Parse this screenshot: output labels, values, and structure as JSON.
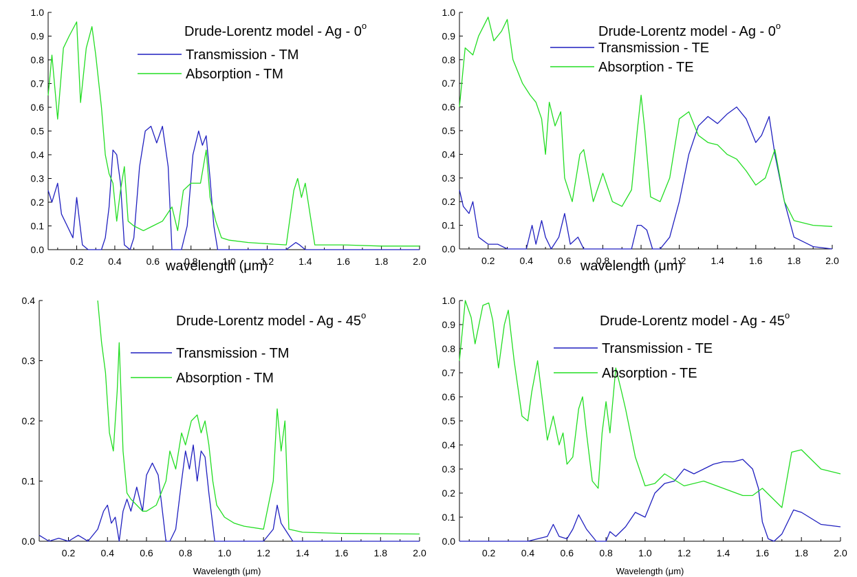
{
  "chart_data": [
    {
      "type": "line",
      "title": "Drude-Lorentz model - Ag - 0",
      "title_superscript": "o",
      "xlabel": "wavelength (μm)",
      "ylabel": "",
      "xlim": [
        0.05,
        2.0
      ],
      "ylim": [
        0.0,
        1.0
      ],
      "xticks": [
        0.2,
        0.4,
        0.6,
        0.8,
        1.0,
        1.2,
        1.4,
        1.6,
        1.8,
        2.0
      ],
      "xticklabels": [
        "0.2",
        "0.4",
        "0.6",
        "0.8",
        "1.0",
        "1.2",
        "1.4",
        "1.6",
        "1.8",
        "2.0"
      ],
      "yticks": [
        0.0,
        0.1,
        0.2,
        0.3,
        0.4,
        0.5,
        0.6,
        0.7,
        0.8,
        0.9,
        1.0
      ],
      "yticklabels": [
        "0.0",
        "0.1",
        "0.2",
        "0.3",
        "0.4",
        "0.5",
        "0.6",
        "0.7",
        "0.8",
        "0.9",
        "1.0"
      ],
      "legend_position": "top-right",
      "series": [
        {
          "name": "Transmission - TM",
          "color": "#1f1fbf",
          "x": [
            0.05,
            0.07,
            0.1,
            0.12,
            0.15,
            0.18,
            0.2,
            0.23,
            0.26,
            0.3,
            0.33,
            0.35,
            0.37,
            0.39,
            0.41,
            0.43,
            0.45,
            0.48,
            0.5,
            0.53,
            0.56,
            0.59,
            0.62,
            0.65,
            0.68,
            0.7,
            0.72,
            0.75,
            0.78,
            0.81,
            0.84,
            0.86,
            0.88,
            0.9,
            0.92,
            0.94,
            0.96,
            1.0,
            1.3,
            1.35,
            1.37,
            1.4,
            2.0
          ],
          "values": [
            0.25,
            0.2,
            0.28,
            0.15,
            0.1,
            0.05,
            0.22,
            0.02,
            0.0,
            0.0,
            0.0,
            0.05,
            0.18,
            0.42,
            0.4,
            0.28,
            0.02,
            0.0,
            0.05,
            0.35,
            0.5,
            0.52,
            0.45,
            0.52,
            0.35,
            0.0,
            0.0,
            0.0,
            0.1,
            0.4,
            0.5,
            0.44,
            0.48,
            0.3,
            0.1,
            0.0,
            0.0,
            0.0,
            0.0,
            0.03,
            0.02,
            0.0,
            0.0
          ]
        },
        {
          "name": "Absorption - TM",
          "color": "#22dd22",
          "x": [
            0.05,
            0.07,
            0.1,
            0.13,
            0.16,
            0.2,
            0.22,
            0.25,
            0.28,
            0.3,
            0.33,
            0.35,
            0.37,
            0.39,
            0.41,
            0.43,
            0.45,
            0.47,
            0.5,
            0.55,
            0.6,
            0.65,
            0.7,
            0.73,
            0.76,
            0.8,
            0.85,
            0.88,
            0.9,
            0.93,
            0.96,
            1.0,
            1.1,
            1.2,
            1.3,
            1.34,
            1.36,
            1.38,
            1.4,
            1.45,
            1.6,
            1.8,
            2.0
          ],
          "values": [
            0.65,
            0.82,
            0.55,
            0.85,
            0.9,
            0.96,
            0.62,
            0.85,
            0.94,
            0.82,
            0.6,
            0.4,
            0.32,
            0.28,
            0.12,
            0.25,
            0.35,
            0.12,
            0.1,
            0.08,
            0.1,
            0.12,
            0.18,
            0.08,
            0.25,
            0.28,
            0.28,
            0.42,
            0.22,
            0.12,
            0.05,
            0.04,
            0.03,
            0.025,
            0.02,
            0.25,
            0.3,
            0.22,
            0.28,
            0.02,
            0.02,
            0.015,
            0.015
          ]
        }
      ]
    },
    {
      "type": "line",
      "title": "Drude-Lorentz model - Ag - 0",
      "title_superscript": "o",
      "xlabel": "wavelength (μm)",
      "ylabel": "",
      "xlim": [
        0.05,
        2.0
      ],
      "ylim": [
        0.0,
        1.0
      ],
      "xticks": [
        0.2,
        0.4,
        0.6,
        0.8,
        1.0,
        1.2,
        1.4,
        1.6,
        1.8,
        2.0
      ],
      "xticklabels": [
        "0.2",
        "0.4",
        "0.6",
        "0.8",
        "1.0",
        "1.2",
        "1.4",
        "1.6",
        "1.8",
        "2.0"
      ],
      "yticks": [
        0.0,
        0.1,
        0.2,
        0.3,
        0.4,
        0.5,
        0.6,
        0.7,
        0.8,
        0.9,
        1.0
      ],
      "yticklabels": [
        "0.0",
        "0.1",
        "0.2",
        "0.3",
        "0.4",
        "0.5",
        "0.6",
        "0.7",
        "0.8",
        "0.9",
        "1.0"
      ],
      "legend_position": "top-right",
      "series": [
        {
          "name": "Transmission - TE",
          "color": "#1f1fbf",
          "x": [
            0.05,
            0.07,
            0.1,
            0.12,
            0.15,
            0.2,
            0.25,
            0.3,
            0.35,
            0.4,
            0.43,
            0.45,
            0.48,
            0.5,
            0.53,
            0.57,
            0.6,
            0.63,
            0.67,
            0.7,
            0.8,
            0.95,
            0.98,
            1.0,
            1.03,
            1.06,
            1.1,
            1.15,
            1.2,
            1.25,
            1.3,
            1.35,
            1.4,
            1.45,
            1.5,
            1.55,
            1.6,
            1.63,
            1.67,
            1.7,
            1.75,
            1.8,
            1.9,
            2.0
          ],
          "values": [
            0.25,
            0.18,
            0.15,
            0.2,
            0.05,
            0.02,
            0.02,
            0.0,
            0.0,
            0.0,
            0.1,
            0.02,
            0.12,
            0.05,
            0.0,
            0.05,
            0.15,
            0.02,
            0.05,
            0.0,
            0.0,
            0.0,
            0.1,
            0.1,
            0.08,
            0.0,
            0.0,
            0.05,
            0.2,
            0.4,
            0.52,
            0.56,
            0.53,
            0.57,
            0.6,
            0.55,
            0.45,
            0.48,
            0.56,
            0.4,
            0.2,
            0.05,
            0.01,
            0.0
          ]
        },
        {
          "name": "Absorption - TE",
          "color": "#22dd22",
          "x": [
            0.05,
            0.08,
            0.12,
            0.15,
            0.2,
            0.23,
            0.27,
            0.3,
            0.33,
            0.38,
            0.42,
            0.45,
            0.48,
            0.5,
            0.52,
            0.55,
            0.58,
            0.6,
            0.64,
            0.68,
            0.7,
            0.75,
            0.8,
            0.85,
            0.9,
            0.95,
            0.98,
            1.0,
            1.02,
            1.05,
            1.1,
            1.15,
            1.2,
            1.25,
            1.3,
            1.35,
            1.4,
            1.45,
            1.5,
            1.55,
            1.6,
            1.65,
            1.7,
            1.75,
            1.8,
            1.9,
            2.0
          ],
          "values": [
            0.6,
            0.85,
            0.82,
            0.9,
            0.98,
            0.88,
            0.92,
            0.97,
            0.8,
            0.7,
            0.65,
            0.62,
            0.55,
            0.4,
            0.62,
            0.52,
            0.58,
            0.3,
            0.2,
            0.4,
            0.42,
            0.2,
            0.32,
            0.2,
            0.18,
            0.25,
            0.5,
            0.65,
            0.5,
            0.22,
            0.2,
            0.3,
            0.55,
            0.58,
            0.48,
            0.45,
            0.44,
            0.4,
            0.38,
            0.33,
            0.27,
            0.3,
            0.42,
            0.2,
            0.12,
            0.1,
            0.095
          ]
        }
      ]
    },
    {
      "type": "line",
      "title": "Drude-Lorentz model - Ag - 45",
      "title_superscript": "o",
      "xlabel": "Wavelength (μm)",
      "ylabel": "",
      "xlim": [
        0.05,
        2.0
      ],
      "ylim": [
        0.0,
        0.4
      ],
      "xticks": [
        0.2,
        0.4,
        0.6,
        0.8,
        1.0,
        1.2,
        1.4,
        1.6,
        1.8,
        2.0
      ],
      "xticklabels": [
        "0.2",
        "0.4",
        "0.6",
        "0.8",
        "1.0",
        "1.2",
        "1.4",
        "1.6",
        "1.8",
        "2.0"
      ],
      "yticks": [
        0.0,
        0.1,
        0.2,
        0.3,
        0.4
      ],
      "yticklabels": [
        "0.0",
        "0.1",
        "0.2",
        "0.3",
        "0.4"
      ],
      "legend_position": "top-right",
      "series": [
        {
          "name": "Transmission - TM",
          "color": "#1f1fbf",
          "x": [
            0.05,
            0.1,
            0.15,
            0.2,
            0.25,
            0.3,
            0.35,
            0.38,
            0.4,
            0.42,
            0.44,
            0.46,
            0.48,
            0.5,
            0.52,
            0.55,
            0.58,
            0.6,
            0.63,
            0.66,
            0.7,
            0.72,
            0.75,
            0.78,
            0.8,
            0.82,
            0.84,
            0.86,
            0.88,
            0.9,
            0.92,
            0.95,
            1.0,
            1.2,
            1.25,
            1.27,
            1.29,
            1.31,
            1.35,
            2.0
          ],
          "values": [
            0.01,
            0.0,
            0.005,
            0.0,
            0.01,
            0.0,
            0.02,
            0.05,
            0.06,
            0.03,
            0.04,
            0.0,
            0.05,
            0.07,
            0.05,
            0.09,
            0.05,
            0.11,
            0.13,
            0.11,
            0.0,
            0.0,
            0.02,
            0.1,
            0.15,
            0.12,
            0.16,
            0.1,
            0.15,
            0.14,
            0.08,
            0.0,
            0.0,
            0.0,
            0.02,
            0.06,
            0.03,
            0.02,
            0.0,
            0.0
          ]
        },
        {
          "name": "Absorption - TM",
          "color": "#22dd22",
          "x": [
            0.35,
            0.37,
            0.39,
            0.41,
            0.43,
            0.45,
            0.46,
            0.48,
            0.5,
            0.52,
            0.55,
            0.58,
            0.6,
            0.65,
            0.7,
            0.72,
            0.75,
            0.78,
            0.8,
            0.83,
            0.86,
            0.88,
            0.9,
            0.92,
            0.94,
            0.96,
            1.0,
            1.05,
            1.1,
            1.2,
            1.25,
            1.27,
            1.29,
            1.31,
            1.33,
            1.4,
            1.6,
            2.0
          ],
          "values": [
            0.4,
            0.33,
            0.28,
            0.18,
            0.15,
            0.25,
            0.33,
            0.15,
            0.08,
            0.07,
            0.06,
            0.05,
            0.05,
            0.06,
            0.1,
            0.15,
            0.12,
            0.18,
            0.16,
            0.2,
            0.21,
            0.18,
            0.2,
            0.16,
            0.1,
            0.06,
            0.04,
            0.03,
            0.025,
            0.02,
            0.1,
            0.22,
            0.15,
            0.2,
            0.02,
            0.015,
            0.013,
            0.012
          ]
        }
      ]
    },
    {
      "type": "line",
      "title": "Drude-Lorentz model - Ag - 45",
      "title_superscript": "o",
      "xlabel": "Wavelength (μm)",
      "ylabel": "",
      "xlim": [
        0.05,
        2.0
      ],
      "ylim": [
        0.0,
        1.0
      ],
      "xticks": [
        0.2,
        0.4,
        0.6,
        0.8,
        1.0,
        1.2,
        1.4,
        1.6,
        1.8,
        2.0
      ],
      "xticklabels": [
        "0.2",
        "0.4",
        "0.6",
        "0.8",
        "1.0",
        "1.2",
        "1.4",
        "1.6",
        "1.8",
        "2.0"
      ],
      "yticks": [
        0.0,
        0.1,
        0.2,
        0.3,
        0.4,
        0.5,
        0.6,
        0.7,
        0.8,
        0.9,
        1.0
      ],
      "yticklabels": [
        "0.0",
        "0.1",
        "0.2",
        "0.3",
        "0.4",
        "0.5",
        "0.6",
        "0.7",
        "0.8",
        "0.9",
        "1.0"
      ],
      "legend_position": "top-right",
      "series": [
        {
          "name": "Transmission - TE",
          "color": "#1f1fbf",
          "x": [
            0.05,
            0.4,
            0.5,
            0.53,
            0.56,
            0.6,
            0.63,
            0.66,
            0.7,
            0.75,
            0.8,
            0.82,
            0.85,
            0.9,
            0.95,
            1.0,
            1.05,
            1.1,
            1.15,
            1.2,
            1.25,
            1.3,
            1.35,
            1.4,
            1.45,
            1.5,
            1.55,
            1.58,
            1.6,
            1.63,
            1.66,
            1.7,
            1.73,
            1.76,
            1.8,
            1.9,
            2.0
          ],
          "values": [
            0.0,
            0.0,
            0.02,
            0.07,
            0.02,
            0.01,
            0.05,
            0.11,
            0.05,
            0.0,
            0.0,
            0.04,
            0.02,
            0.06,
            0.12,
            0.1,
            0.2,
            0.24,
            0.25,
            0.3,
            0.28,
            0.3,
            0.32,
            0.33,
            0.33,
            0.34,
            0.3,
            0.22,
            0.08,
            0.01,
            0.0,
            0.03,
            0.08,
            0.13,
            0.12,
            0.07,
            0.06
          ]
        },
        {
          "name": "Absorption - TE",
          "color": "#22dd22",
          "x": [
            0.05,
            0.08,
            0.11,
            0.13,
            0.17,
            0.2,
            0.22,
            0.25,
            0.28,
            0.3,
            0.33,
            0.37,
            0.4,
            0.42,
            0.45,
            0.5,
            0.53,
            0.56,
            0.58,
            0.6,
            0.63,
            0.66,
            0.68,
            0.7,
            0.73,
            0.76,
            0.78,
            0.8,
            0.82,
            0.85,
            0.88,
            0.9,
            0.95,
            1.0,
            1.05,
            1.1,
            1.2,
            1.3,
            1.4,
            1.5,
            1.55,
            1.6,
            1.65,
            1.7,
            1.75,
            1.8,
            1.9,
            2.0
          ],
          "values": [
            0.75,
            1.0,
            0.93,
            0.82,
            0.98,
            0.99,
            0.92,
            0.72,
            0.9,
            0.96,
            0.75,
            0.52,
            0.5,
            0.62,
            0.75,
            0.42,
            0.52,
            0.4,
            0.45,
            0.32,
            0.35,
            0.55,
            0.6,
            0.45,
            0.25,
            0.22,
            0.45,
            0.58,
            0.45,
            0.72,
            0.62,
            0.55,
            0.35,
            0.23,
            0.24,
            0.28,
            0.23,
            0.25,
            0.22,
            0.19,
            0.19,
            0.22,
            0.18,
            0.14,
            0.37,
            0.38,
            0.3,
            0.28
          ]
        }
      ]
    }
  ]
}
